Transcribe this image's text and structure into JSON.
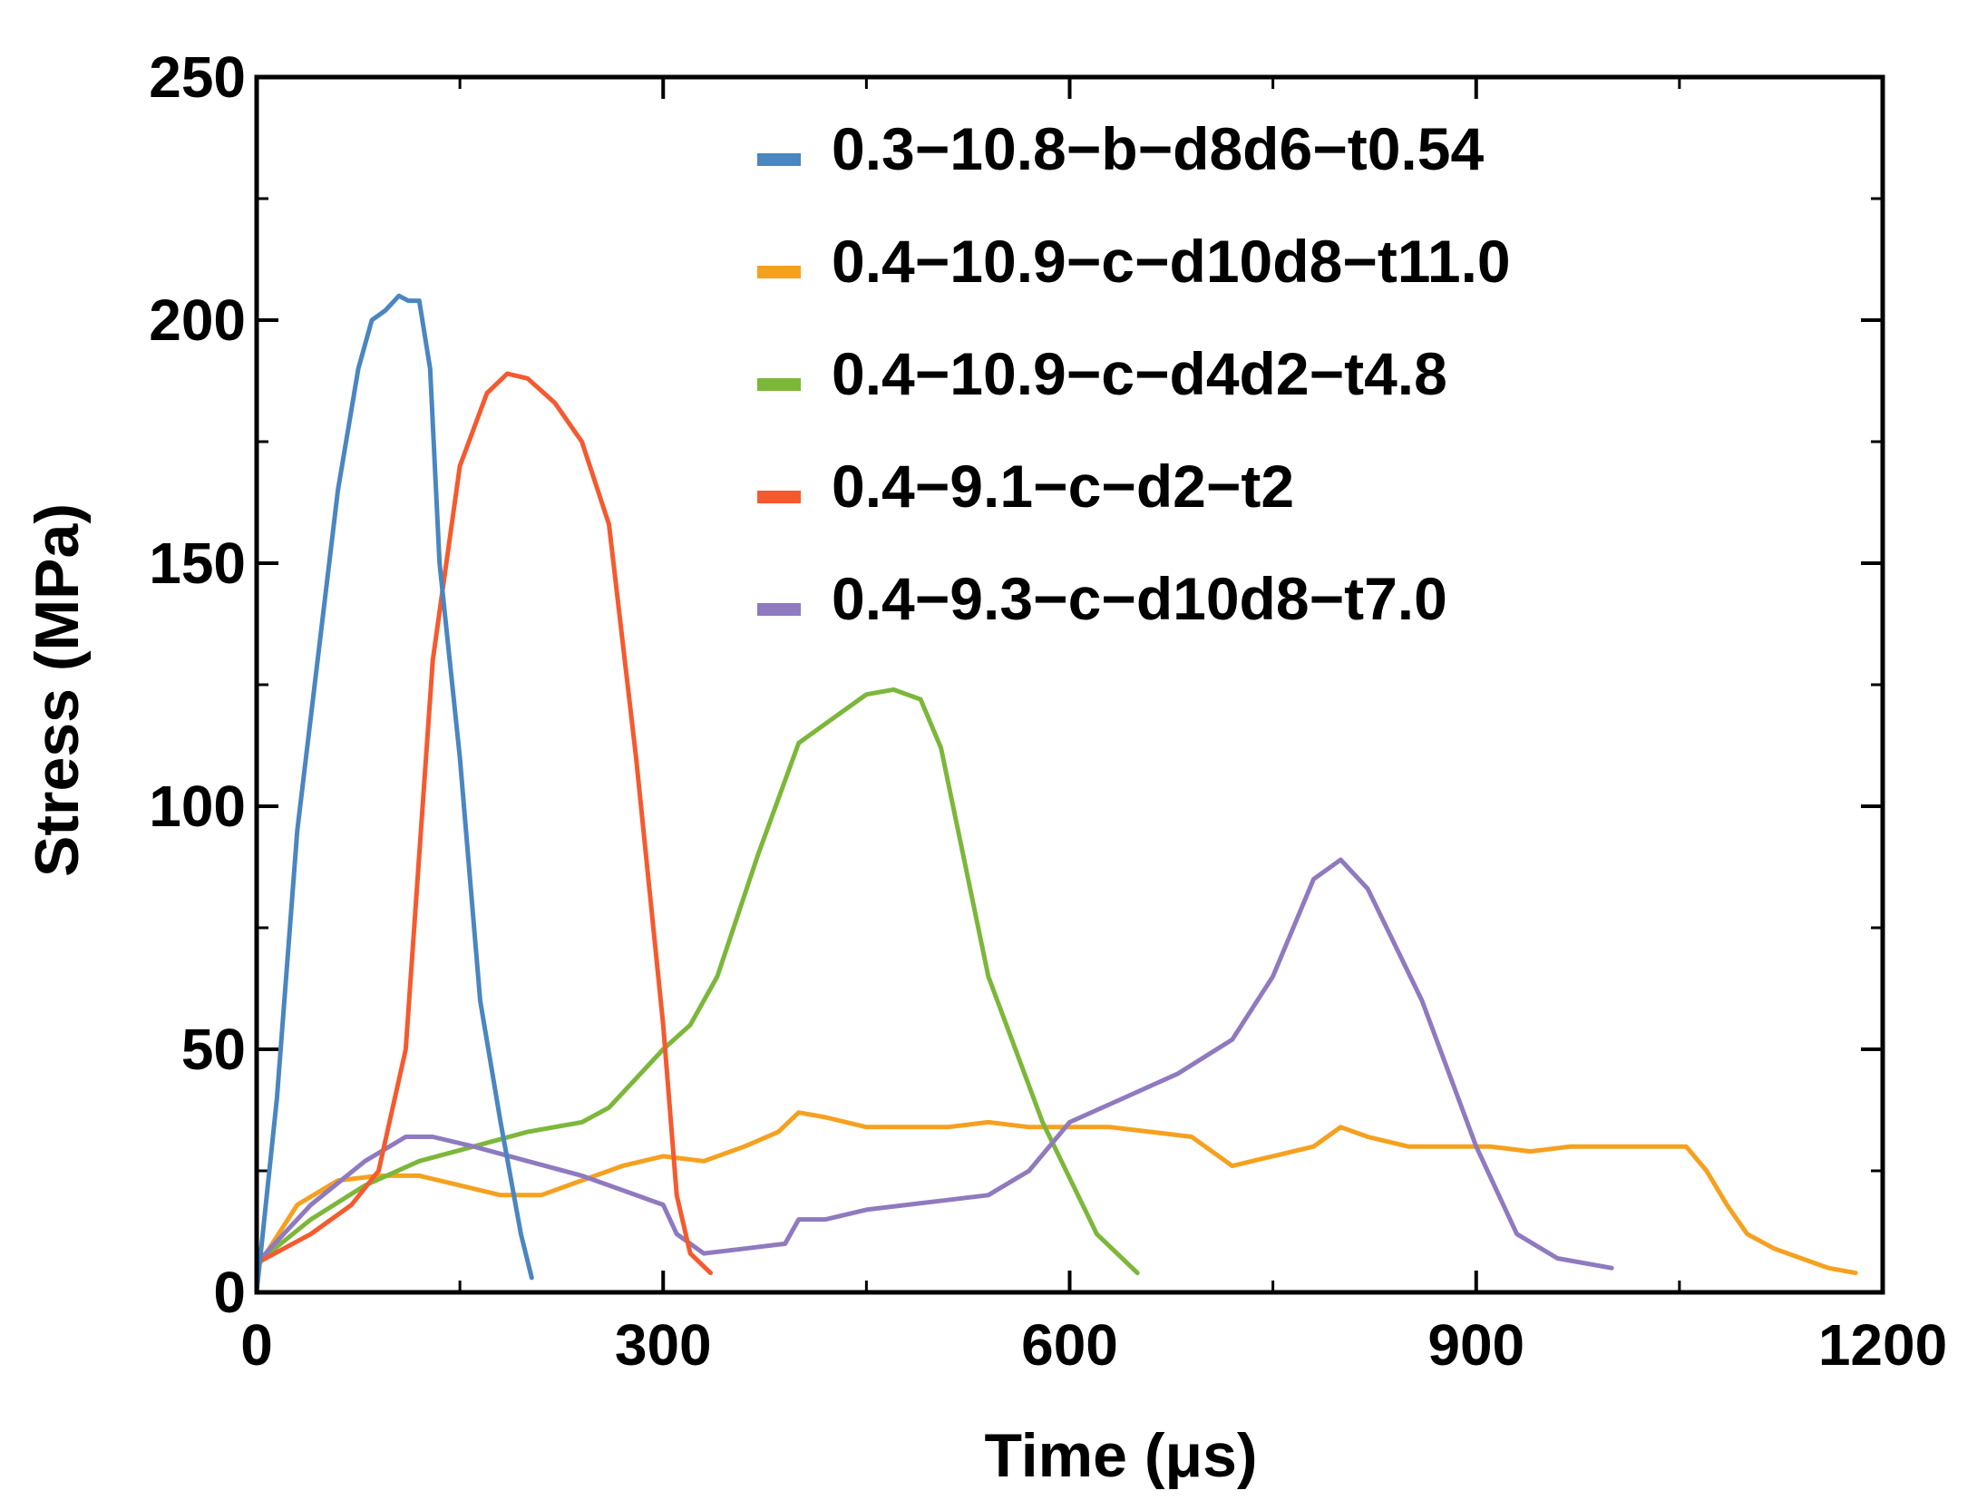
{
  "chart_data": {
    "type": "line",
    "title": "",
    "xlabel": "Time (μs)",
    "ylabel": "Stress (MPa)",
    "xlim": [
      0,
      1200
    ],
    "ylim": [
      0,
      250
    ],
    "xticks": [
      0,
      300,
      600,
      900,
      1200
    ],
    "yticks": [
      0,
      50,
      100,
      150,
      200,
      250
    ],
    "xticks_minor": [
      150,
      450,
      750,
      1050
    ],
    "yticks_minor": [
      25,
      75,
      125,
      175,
      225
    ],
    "grid": false,
    "legend_position": "top-right",
    "series": [
      {
        "name": "0.3−10.8−b−d8d6−t0.54",
        "color": "#4a86c0",
        "x": [
          0,
          15,
          30,
          45,
          60,
          75,
          85,
          95,
          105,
          112,
          120,
          128,
          135,
          150,
          165,
          180,
          195,
          203
        ],
        "y": [
          0,
          40,
          95,
          130,
          165,
          190,
          200,
          202,
          205,
          204,
          204,
          190,
          150,
          110,
          60,
          35,
          12,
          3
        ]
      },
      {
        "name": "0.4−10.9−c−d10d8−t11.0",
        "color": "#f5a11f",
        "x": [
          0,
          30,
          60,
          90,
          120,
          150,
          180,
          210,
          240,
          270,
          300,
          330,
          360,
          385,
          400,
          420,
          450,
          480,
          510,
          540,
          570,
          600,
          630,
          660,
          690,
          720,
          750,
          780,
          800,
          820,
          850,
          880,
          910,
          940,
          970,
          1000,
          1030,
          1055,
          1070,
          1085,
          1100,
          1120,
          1140,
          1160,
          1180
        ],
        "y": [
          5,
          18,
          23,
          24,
          24,
          22,
          20,
          20,
          23,
          26,
          28,
          27,
          30,
          33,
          37,
          36,
          34,
          34,
          34,
          35,
          34,
          34,
          34,
          33,
          32,
          26,
          28,
          30,
          34,
          32,
          30,
          30,
          30,
          29,
          30,
          30,
          30,
          30,
          25,
          18,
          12,
          9,
          7,
          5,
          4
        ]
      },
      {
        "name": "0.4−10.9−c−d4d2−t4.8",
        "color": "#7cb73a",
        "x": [
          0,
          40,
          80,
          120,
          160,
          200,
          240,
          260,
          300,
          320,
          340,
          370,
          400,
          420,
          450,
          470,
          490,
          505,
          540,
          580,
          620,
          650
        ],
        "y": [
          6,
          15,
          22,
          27,
          30,
          33,
          35,
          38,
          50,
          55,
          65,
          90,
          113,
          117,
          123,
          124,
          122,
          112,
          65,
          35,
          12,
          4
        ]
      },
      {
        "name": "0.4−9.1−c−d2−t2",
        "color": "#f55a2f",
        "x": [
          0,
          40,
          70,
          90,
          110,
          130,
          150,
          170,
          185,
          200,
          220,
          240,
          260,
          280,
          300,
          310,
          320,
          335
        ],
        "y": [
          6,
          12,
          18,
          25,
          50,
          130,
          170,
          185,
          189,
          188,
          183,
          175,
          158,
          110,
          55,
          20,
          8,
          4
        ]
      },
      {
        "name": "0.4−9.3−c−d10d8−t7.0",
        "color": "#8f7ac0",
        "x": [
          0,
          40,
          80,
          110,
          130,
          160,
          200,
          240,
          270,
          300,
          310,
          330,
          360,
          390,
          400,
          420,
          450,
          480,
          510,
          540,
          570,
          600,
          640,
          680,
          720,
          750,
          780,
          800,
          820,
          860,
          900,
          930,
          960,
          1000
        ],
        "y": [
          6,
          18,
          27,
          32,
          32,
          30,
          27,
          24,
          21,
          18,
          12,
          8,
          9,
          10,
          15,
          15,
          17,
          18,
          19,
          20,
          25,
          35,
          40,
          45,
          52,
          65,
          85,
          89,
          83,
          60,
          30,
          12,
          7,
          5
        ]
      }
    ]
  }
}
